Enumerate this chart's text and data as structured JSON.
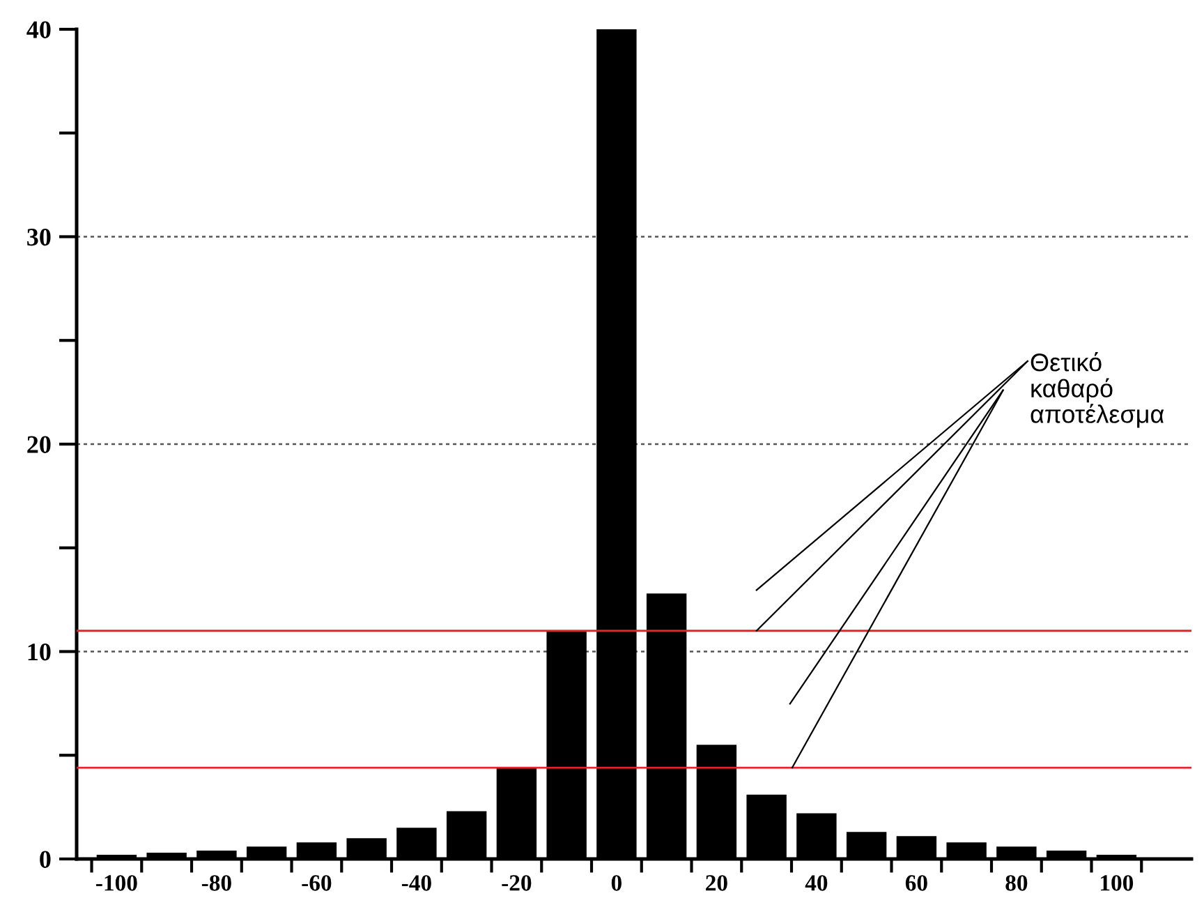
{
  "chart_data": {
    "type": "histogram",
    "bins": [
      -105,
      -95,
      -85,
      -75,
      -65,
      -55,
      -45,
      -35,
      -25,
      -15,
      -5,
      5,
      15,
      25,
      35,
      45,
      55,
      65,
      75,
      85,
      95,
      105
    ],
    "values": [
      0.2,
      0.3,
      0.4,
      0.6,
      0.8,
      1.0,
      1.5,
      2.3,
      4.4,
      11.0,
      40,
      12.8,
      5.5,
      3.1,
      2.2,
      1.3,
      1.1,
      0.8,
      0.6,
      0.4,
      0.2
    ],
    "color": "#000000",
    "xlim": [
      -108,
      115
    ],
    "xticks": [
      {
        "value": -105,
        "label": null
      },
      -100,
      {
        "value": -95,
        "label": null
      },
      {
        "value": -85,
        "label": null
      },
      -80,
      {
        "value": -75,
        "label": null
      },
      {
        "value": -65,
        "label": null
      },
      -60,
      {
        "value": -55,
        "label": null
      },
      {
        "value": -45,
        "label": null
      },
      -40,
      {
        "value": -35,
        "label": null
      },
      {
        "value": -25,
        "label": null
      },
      -20,
      {
        "value": -15,
        "label": null
      },
      {
        "value": -5,
        "label": null
      },
      0,
      {
        "value": 5,
        "label": null
      },
      {
        "value": 15,
        "label": null
      },
      20,
      {
        "value": 25,
        "label": null
      },
      {
        "value": 35,
        "label": null
      },
      40,
      {
        "value": 45,
        "label": null
      },
      {
        "value": 55,
        "label": null
      },
      60,
      {
        "value": 65,
        "label": null
      },
      {
        "value": 75,
        "label": null
      },
      80,
      {
        "value": 85,
        "label": null
      },
      {
        "value": 95,
        "label": null
      },
      100,
      {
        "value": 105,
        "label": null
      }
    ],
    "ylim": [
      0,
      40
    ],
    "yticks": [
      0,
      {
        "value": 5,
        "label": null
      },
      10,
      {
        "value": 15,
        "label": null
      },
      20,
      {
        "value": 25,
        "label": null
      },
      30,
      {
        "value": 35,
        "label": null
      },
      40
    ],
    "grid": "y",
    "ref_lines": [
      {
        "axis": "y",
        "value": 11.0,
        "color": "#e8212a"
      },
      {
        "axis": "y",
        "value": 4.4,
        "color": "#e8212a"
      }
    ],
    "annotations": [
      {
        "text": "Θετικό\nκαθαρό\nαποτέλεσμα",
        "x": 28,
        "y": 11.0
      }
    ]
  }
}
